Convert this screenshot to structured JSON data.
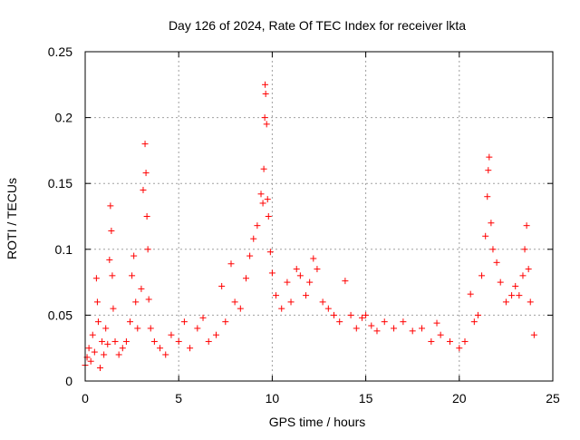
{
  "chart_data": {
    "type": "scatter",
    "title": "Day 126 of 2024, Rate Of TEC Index for receiver lkta",
    "xlabel": "GPS time / hours",
    "ylabel": "ROTI / TECUs",
    "xlim": [
      0,
      25
    ],
    "ylim": [
      0,
      0.25
    ],
    "x_ticks": [
      0,
      5,
      10,
      15,
      20,
      25
    ],
    "y_ticks": [
      0,
      0.05,
      0.1,
      0.15,
      0.2,
      0.25
    ],
    "x_tick_labels": [
      "0",
      "5",
      "10",
      "15",
      "20",
      "25"
    ],
    "y_tick_labels": [
      "0",
      "0.05",
      "0.1",
      "0.15",
      "0.2",
      "0.25"
    ],
    "grid": true,
    "marker": "+",
    "series": [
      {
        "name": "ROTI",
        "color": "#ff0000",
        "points": [
          [
            0.0,
            0.012
          ],
          [
            0.1,
            0.018
          ],
          [
            0.2,
            0.025
          ],
          [
            0.3,
            0.015
          ],
          [
            0.4,
            0.035
          ],
          [
            0.5,
            0.022
          ],
          [
            0.6,
            0.078
          ],
          [
            0.65,
            0.06
          ],
          [
            0.7,
            0.045
          ],
          [
            0.8,
            0.01
          ],
          [
            0.9,
            0.03
          ],
          [
            1.0,
            0.02
          ],
          [
            1.1,
            0.04
          ],
          [
            1.2,
            0.028
          ],
          [
            1.3,
            0.092
          ],
          [
            1.35,
            0.133
          ],
          [
            1.4,
            0.114
          ],
          [
            1.45,
            0.08
          ],
          [
            1.5,
            0.055
          ],
          [
            1.6,
            0.03
          ],
          [
            1.8,
            0.02
          ],
          [
            2.0,
            0.025
          ],
          [
            2.2,
            0.03
          ],
          [
            2.4,
            0.045
          ],
          [
            2.5,
            0.08
          ],
          [
            2.6,
            0.095
          ],
          [
            2.7,
            0.06
          ],
          [
            2.8,
            0.04
          ],
          [
            3.0,
            0.07
          ],
          [
            3.1,
            0.145
          ],
          [
            3.2,
            0.18
          ],
          [
            3.25,
            0.158
          ],
          [
            3.3,
            0.125
          ],
          [
            3.35,
            0.1
          ],
          [
            3.4,
            0.062
          ],
          [
            3.5,
            0.04
          ],
          [
            3.7,
            0.03
          ],
          [
            4.0,
            0.025
          ],
          [
            4.3,
            0.02
          ],
          [
            4.6,
            0.035
          ],
          [
            5.0,
            0.03
          ],
          [
            5.3,
            0.045
          ],
          [
            5.6,
            0.025
          ],
          [
            6.0,
            0.04
          ],
          [
            6.3,
            0.048
          ],
          [
            6.6,
            0.03
          ],
          [
            7.0,
            0.035
          ],
          [
            7.3,
            0.072
          ],
          [
            7.5,
            0.045
          ],
          [
            7.8,
            0.089
          ],
          [
            8.0,
            0.06
          ],
          [
            8.3,
            0.055
          ],
          [
            8.6,
            0.078
          ],
          [
            8.8,
            0.095
          ],
          [
            9.0,
            0.108
          ],
          [
            9.2,
            0.118
          ],
          [
            9.4,
            0.142
          ],
          [
            9.5,
            0.135
          ],
          [
            9.55,
            0.161
          ],
          [
            9.6,
            0.2
          ],
          [
            9.62,
            0.225
          ],
          [
            9.65,
            0.218
          ],
          [
            9.7,
            0.195
          ],
          [
            9.75,
            0.138
          ],
          [
            9.8,
            0.125
          ],
          [
            9.9,
            0.098
          ],
          [
            10.0,
            0.082
          ],
          [
            10.2,
            0.065
          ],
          [
            10.5,
            0.055
          ],
          [
            10.8,
            0.075
          ],
          [
            11.0,
            0.06
          ],
          [
            11.3,
            0.085
          ],
          [
            11.5,
            0.08
          ],
          [
            11.8,
            0.065
          ],
          [
            12.0,
            0.075
          ],
          [
            12.2,
            0.093
          ],
          [
            12.4,
            0.085
          ],
          [
            12.7,
            0.06
          ],
          [
            13.0,
            0.055
          ],
          [
            13.3,
            0.05
          ],
          [
            13.6,
            0.045
          ],
          [
            13.9,
            0.076
          ],
          [
            14.2,
            0.05
          ],
          [
            14.5,
            0.04
          ],
          [
            14.8,
            0.048
          ],
          [
            15.0,
            0.05
          ],
          [
            15.3,
            0.042
          ],
          [
            15.6,
            0.038
          ],
          [
            16.0,
            0.045
          ],
          [
            16.5,
            0.04
          ],
          [
            17.0,
            0.045
          ],
          [
            17.5,
            0.038
          ],
          [
            18.0,
            0.04
          ],
          [
            18.5,
            0.03
          ],
          [
            18.8,
            0.044
          ],
          [
            19.0,
            0.035
          ],
          [
            19.5,
            0.03
          ],
          [
            20.0,
            0.025
          ],
          [
            20.3,
            0.03
          ],
          [
            20.6,
            0.066
          ],
          [
            20.8,
            0.045
          ],
          [
            21.0,
            0.05
          ],
          [
            21.2,
            0.08
          ],
          [
            21.4,
            0.11
          ],
          [
            21.5,
            0.14
          ],
          [
            21.55,
            0.16
          ],
          [
            21.6,
            0.17
          ],
          [
            21.7,
            0.12
          ],
          [
            21.8,
            0.1
          ],
          [
            22.0,
            0.09
          ],
          [
            22.2,
            0.075
          ],
          [
            22.5,
            0.06
          ],
          [
            22.8,
            0.065
          ],
          [
            23.0,
            0.072
          ],
          [
            23.2,
            0.065
          ],
          [
            23.4,
            0.08
          ],
          [
            23.5,
            0.1
          ],
          [
            23.6,
            0.118
          ],
          [
            23.7,
            0.085
          ],
          [
            23.8,
            0.06
          ],
          [
            24.0,
            0.035
          ]
        ]
      }
    ]
  }
}
